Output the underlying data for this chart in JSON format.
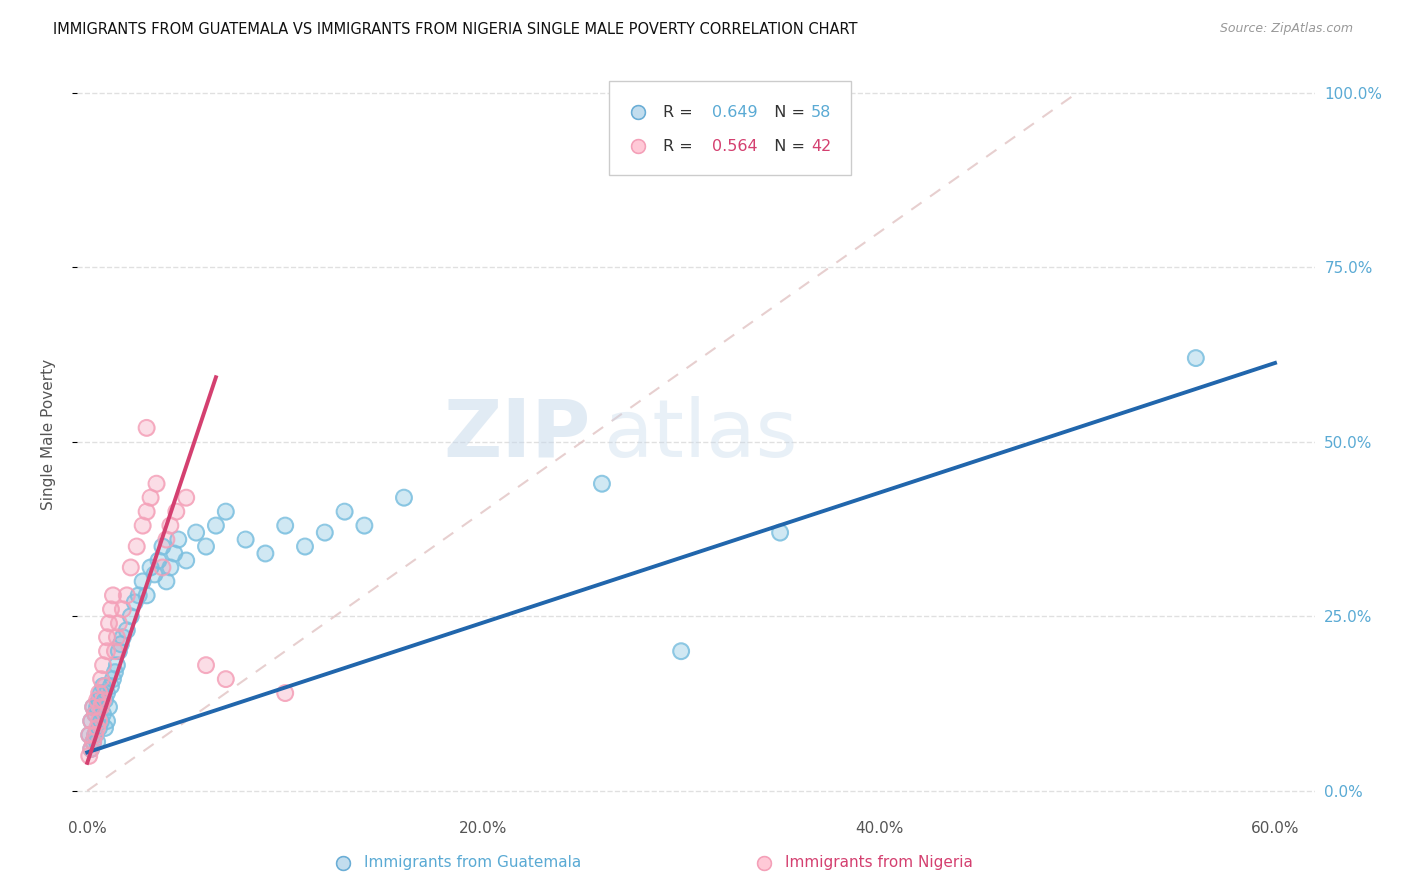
{
  "title": "IMMIGRANTS FROM GUATEMALA VS IMMIGRANTS FROM NIGERIA SINGLE MALE POVERTY CORRELATION CHART",
  "source": "Source: ZipAtlas.com",
  "ylabel_label": "Single Male Poverty",
  "xlim": [
    -0.005,
    0.62
  ],
  "ylim": [
    -0.03,
    1.05
  ],
  "color_guatemala": "#7bbfdf",
  "color_nigeria": "#f4a0b8",
  "trendline_guatemala": "#2166ac",
  "trendline_nigeria": "#d44070",
  "diagonal_color": "#cccccc",
  "bg_color": "#ffffff",
  "xticks": [
    0.0,
    0.2,
    0.4,
    0.6
  ],
  "xticklabels": [
    "0.0%",
    "20.0%",
    "40.0%",
    "60.0%"
  ],
  "yticks_right": [
    0.0,
    0.25,
    0.5,
    0.75,
    1.0
  ],
  "yticklabels_right": [
    "0.0%",
    "25.0%",
    "50.0%",
    "75.0%",
    "100.0%"
  ],
  "R_guatemala": "0.649",
  "N_guatemala": "58",
  "R_nigeria": "0.564",
  "N_nigeria": "42",
  "legend_label_guatemala": "Immigrants from Guatemala",
  "legend_label_nigeria": "Immigrants from Nigeria",
  "guatemala_x": [
    0.001,
    0.002,
    0.002,
    0.003,
    0.003,
    0.004,
    0.004,
    0.005,
    0.005,
    0.006,
    0.006,
    0.007,
    0.007,
    0.008,
    0.008,
    0.009,
    0.009,
    0.01,
    0.01,
    0.011,
    0.012,
    0.013,
    0.014,
    0.015,
    0.016,
    0.017,
    0.018,
    0.02,
    0.022,
    0.024,
    0.026,
    0.028,
    0.03,
    0.032,
    0.034,
    0.036,
    0.038,
    0.04,
    0.042,
    0.044,
    0.046,
    0.05,
    0.055,
    0.06,
    0.065,
    0.07,
    0.08,
    0.09,
    0.1,
    0.11,
    0.12,
    0.13,
    0.14,
    0.16,
    0.26,
    0.3,
    0.35,
    0.56
  ],
  "guatemala_y": [
    0.08,
    0.06,
    0.1,
    0.07,
    0.12,
    0.08,
    0.11,
    0.07,
    0.12,
    0.09,
    0.13,
    0.1,
    0.14,
    0.11,
    0.15,
    0.09,
    0.13,
    0.1,
    0.14,
    0.12,
    0.15,
    0.16,
    0.17,
    0.18,
    0.2,
    0.21,
    0.22,
    0.23,
    0.25,
    0.27,
    0.28,
    0.3,
    0.28,
    0.32,
    0.31,
    0.33,
    0.35,
    0.3,
    0.32,
    0.34,
    0.36,
    0.33,
    0.37,
    0.35,
    0.38,
    0.4,
    0.36,
    0.34,
    0.38,
    0.35,
    0.37,
    0.4,
    0.38,
    0.42,
    0.44,
    0.2,
    0.37,
    0.62
  ],
  "nigeria_x": [
    0.001,
    0.001,
    0.002,
    0.002,
    0.003,
    0.003,
    0.004,
    0.004,
    0.005,
    0.005,
    0.006,
    0.006,
    0.007,
    0.007,
    0.008,
    0.008,
    0.009,
    0.01,
    0.01,
    0.011,
    0.012,
    0.013,
    0.014,
    0.015,
    0.016,
    0.018,
    0.02,
    0.022,
    0.025,
    0.028,
    0.03,
    0.032,
    0.035,
    0.038,
    0.04,
    0.042,
    0.045,
    0.05,
    0.06,
    0.07,
    0.1,
    0.03
  ],
  "nigeria_y": [
    0.05,
    0.08,
    0.06,
    0.1,
    0.07,
    0.12,
    0.08,
    0.11,
    0.09,
    0.13,
    0.1,
    0.14,
    0.12,
    0.16,
    0.13,
    0.18,
    0.15,
    0.2,
    0.22,
    0.24,
    0.26,
    0.28,
    0.2,
    0.22,
    0.24,
    0.26,
    0.28,
    0.32,
    0.35,
    0.38,
    0.4,
    0.42,
    0.44,
    0.32,
    0.36,
    0.38,
    0.4,
    0.42,
    0.18,
    0.16,
    0.14,
    0.52
  ],
  "gtl_intercept": 0.055,
  "gtl_slope": 0.93,
  "ntl_intercept": 0.04,
  "ntl_slope": 8.5
}
